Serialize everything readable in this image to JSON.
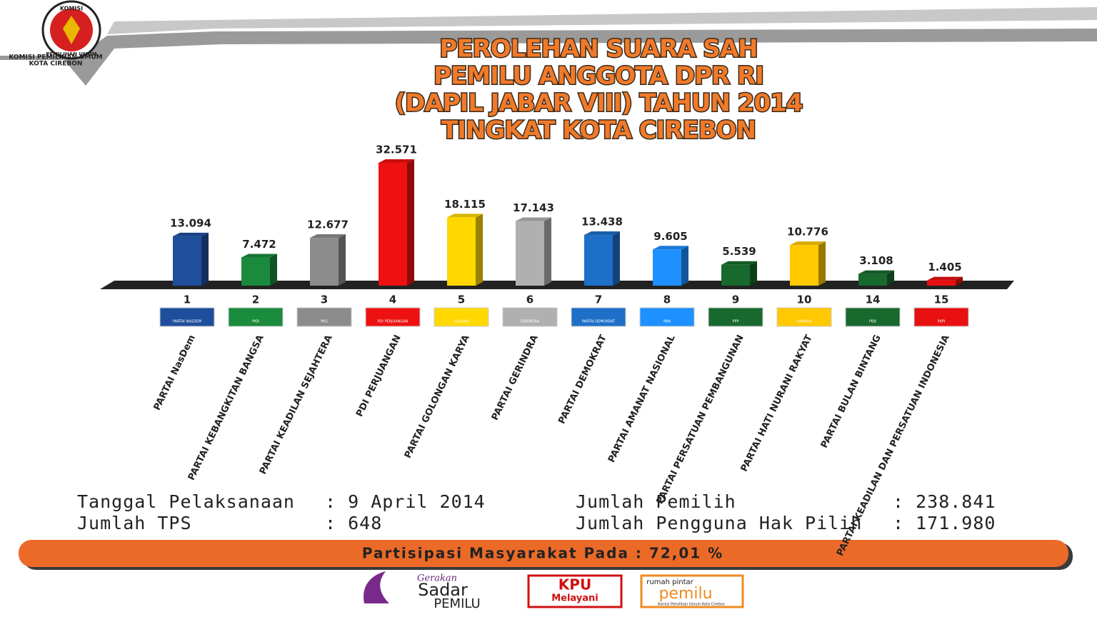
{
  "header": {
    "logo_top": "KOMISI",
    "logo_ring": "PEMILIHAN UMUM",
    "logo_caption": [
      "KOMISI PEMILIHAN UMUM",
      "KOTA CIREBON"
    ]
  },
  "chart_data": {
    "type": "bar",
    "title": [
      "PEROLEHAN SUARA SAH",
      "PEMILU ANGGOTA DPR RI",
      "(DAPIL JABAR VIII) TAHUN 2014",
      "TINGKAT KOTA CIREBON"
    ],
    "party_numbers": [
      "1",
      "2",
      "3",
      "4",
      "5",
      "6",
      "7",
      "8",
      "9",
      "10",
      "14",
      "15"
    ],
    "logo_texts": [
      "PARTAI NASDEM",
      "PKB",
      "PKS",
      "PDI PERJUANGAN",
      "GOLKAR",
      "GERINDRA",
      "PARTAI DEMOKRAT",
      "PAN",
      "PPP",
      "HANURA",
      "PBB",
      "PKPI"
    ],
    "categories": [
      "PARTAI NasDem",
      "PARTAI KEBANGKITAN BANGSA",
      "PARTAI KEADILAN SEJAHTERA",
      "PDI PERJUANGAN",
      "PARTAI GOLONGAN KARYA",
      "PARTAI GERINDRA",
      "PARTAI DEMOKRAT",
      "PARTAI AMANAT NASIONAL",
      "PARTAI PERSATUAN PEMBANGUNAN",
      "PARTAI HATI NURANI RAKYAT",
      "PARTAI BULAN BINTANG",
      "PARTAI KEADILAN DAN PERSATUAN INDONESIA"
    ],
    "values": [
      13094,
      7472,
      12677,
      32571,
      18115,
      17143,
      13438,
      9605,
      5539,
      10776,
      3108,
      1405
    ],
    "value_labels": [
      "13.094",
      "7.472",
      "12.677",
      "32.571",
      "18.115",
      "17.143",
      "13.438",
      "9.605",
      "5.539",
      "10.776",
      "3.108",
      "1.405"
    ],
    "colors": [
      "#1f4e9c",
      "#1a8a3c",
      "#8c8c8c",
      "#ee1111",
      "#ffd800",
      "#b0b0b0",
      "#1e6fc8",
      "#1e90ff",
      "#17692e",
      "#ffc800",
      "#17692e",
      "#e81010"
    ]
  },
  "info": {
    "left": [
      {
        "label": "Tanggal Pelaksanaan",
        "value": ": 9 April 2014"
      },
      {
        "label": "Jumlah TPS",
        "value": ": 648"
      }
    ],
    "right": [
      {
        "label": "Jumlah Pemilih",
        "value": ": 238.841"
      },
      {
        "label": "Jumlah Pengguna Hak Pilih",
        "value": ": 171.980"
      }
    ],
    "participation": "Partisipasi Masyarakat Pada : 72,01 %"
  },
  "footer": {
    "sadar": [
      "Gerakan",
      "Sadar",
      "PEMILU"
    ],
    "kpu": [
      "KPU",
      "Melayani"
    ],
    "rumah": [
      "rumah pintar",
      "pemilu",
      "Komisi Pemilihan Umum Kota Cirebon"
    ]
  }
}
